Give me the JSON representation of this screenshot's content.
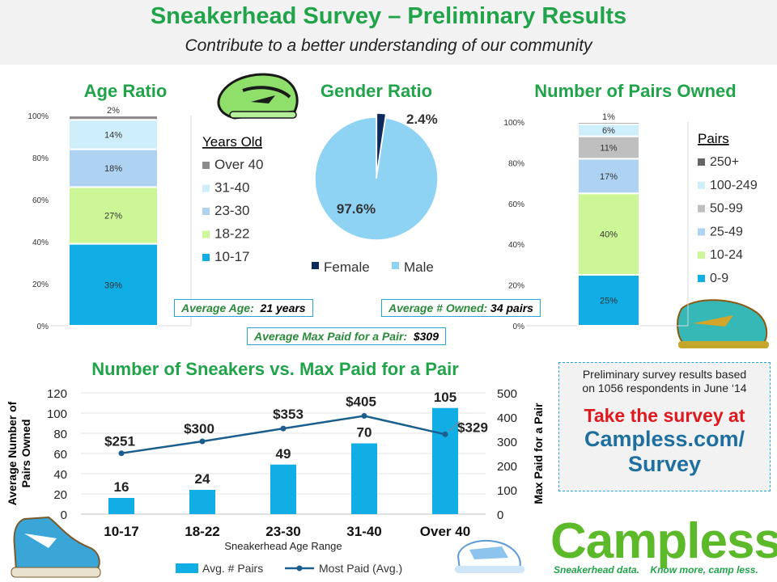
{
  "header": {
    "title": "Sneakerhead Survey – Preliminary Results",
    "subtitle": "Contribute to a better understanding of our community"
  },
  "colors": {
    "green_title": "#21a34a",
    "box_border": "#29a4d8",
    "female": "#0d2a5c",
    "male": "#8fd3f4",
    "bar_blue": "#11aee6",
    "line_blue": "#1a5e8e"
  },
  "age_ratio": {
    "title": "Age Ratio",
    "legend_title": "Years Old",
    "segments": [
      {
        "label": "10-17",
        "value": 39,
        "text": "39%",
        "color": "#11aee6"
      },
      {
        "label": "18-22",
        "value": 27,
        "text": "27%",
        "color": "#ccf797"
      },
      {
        "label": "23-30",
        "value": 18,
        "text": "18%",
        "color": "#aed3f2"
      },
      {
        "label": "31-40",
        "value": 14,
        "text": "14%",
        "color": "#cfeefc"
      },
      {
        "label": "Over 40",
        "value": 2,
        "text": "2%",
        "color": "#8c8c8c"
      }
    ],
    "y_ticks": [
      "0%",
      "20%",
      "40%",
      "60%",
      "80%",
      "100%"
    ]
  },
  "gender_ratio": {
    "title": "Gender Ratio",
    "slices": [
      {
        "label": "Female",
        "value": 2.4,
        "text": "2.4%",
        "color": "#0d2a5c"
      },
      {
        "label": "Male",
        "value": 97.6,
        "text": "97.6%",
        "color": "#8fd3f4"
      }
    ]
  },
  "pairs_owned": {
    "title": "Number of Pairs Owned",
    "legend_title": "Pairs",
    "segments": [
      {
        "label": "0-9",
        "value": 25,
        "text": "25%",
        "color": "#11aee6"
      },
      {
        "label": "10-24",
        "value": 40,
        "text": "40%",
        "color": "#ccf797"
      },
      {
        "label": "25-49",
        "value": 17,
        "text": "17%",
        "color": "#aed3f2"
      },
      {
        "label": "50-99",
        "value": 11,
        "text": "11%",
        "color": "#bfbfbf"
      },
      {
        "label": "100-249",
        "value": 6,
        "text": "6%",
        "color": "#cfeefc"
      },
      {
        "label": "250+",
        "value": 1,
        "text": "1%",
        "color": "#666666"
      }
    ],
    "y_ticks": [
      "0%",
      "20%",
      "40%",
      "60%",
      "80%",
      "100%"
    ]
  },
  "stats": {
    "avg_age_label": "Average Age:",
    "avg_age_value": "21 years",
    "avg_owned_label": "Average # Owned:",
    "avg_owned_value": "34 pairs",
    "avg_max_label": "Average Max Paid for a Pair:",
    "avg_max_value": "$309"
  },
  "chart_data": {
    "type": "bar",
    "title": "Number of Sneakers vs. Max Paid for a Pair",
    "xlabel": "Sneakerhead Age Range",
    "ylabel": "Average Number of Pairs Owned",
    "y2label": "Max Paid for a Pair",
    "categories": [
      "10-17",
      "18-22",
      "23-30",
      "31-40",
      "Over 40"
    ],
    "series": [
      {
        "name": "Avg. # Pairs",
        "type": "bar",
        "values": [
          16,
          24,
          49,
          70,
          105
        ],
        "labels": [
          "16",
          "24",
          "49",
          "70",
          "105"
        ],
        "axis": "left"
      },
      {
        "name": "Most Paid (Avg.)",
        "type": "line",
        "values": [
          251,
          300,
          353,
          405,
          329
        ],
        "labels": [
          "$251",
          "$300",
          "$353",
          "$405",
          "$329"
        ],
        "axis": "right"
      }
    ],
    "ylim": [
      0,
      120
    ],
    "y_ticks": [
      "0",
      "20",
      "40",
      "60",
      "80",
      "100",
      "120"
    ],
    "y2lim": [
      0,
      500
    ],
    "y2_ticks": [
      "0",
      "100",
      "200",
      "300",
      "400",
      "500"
    ],
    "legend": "bottom"
  },
  "info": {
    "note_line1": "Preliminary survey results based",
    "note_line2": "on 1056 respondents in June ‘14",
    "cta": "Take the survey at",
    "url_line1": "Campless.com/",
    "url_line2": "Survey"
  },
  "logo": {
    "word": "Campless",
    "tag1": "Sneakerhead data.",
    "tag2": "Know more, camp less."
  }
}
